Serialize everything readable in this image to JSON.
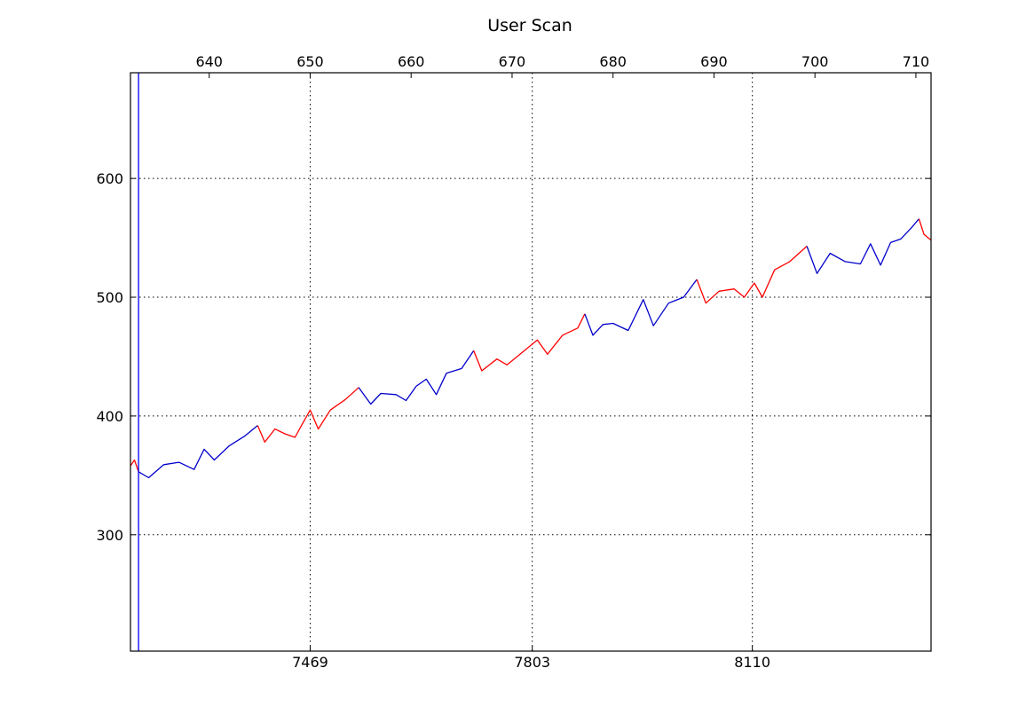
{
  "chart_data": {
    "type": "line",
    "title": "User Scan",
    "xlabel": "",
    "ylabel": "",
    "grid": true,
    "grid_style": "dotted",
    "top_axis": {
      "ticks": [
        640,
        650,
        660,
        670,
        680,
        690,
        700,
        710
      ],
      "range": [
        632.2,
        711.5
      ]
    },
    "bottom_axis": {
      "ticks": [
        "7469",
        "7803",
        "8110"
      ],
      "tick_at_top_value": [
        650,
        672,
        693.8
      ]
    },
    "y_axis": {
      "ticks": [
        300,
        400,
        500,
        600
      ],
      "range": [
        202,
        689
      ]
    },
    "series": [
      {
        "color": "#ff0000",
        "x": [
          632.2,
          632.6,
          633.0
        ],
        "y": [
          358,
          363,
          353
        ]
      },
      {
        "color": "#0000cc",
        "x": [
          633.0,
          634.0,
          635.5,
          637.0,
          638.5,
          639.5,
          640.5,
          642.0,
          643.5,
          644.8
        ],
        "y": [
          353,
          348,
          359,
          361,
          355,
          372,
          363,
          375,
          383,
          392
        ]
      },
      {
        "color": "#ff0000",
        "x": [
          644.8,
          645.5,
          646.5,
          647.5,
          648.5,
          649.2,
          650.0,
          650.8,
          652.0,
          653.5,
          654.8
        ],
        "y": [
          392,
          378,
          389,
          385,
          382,
          393,
          405,
          389,
          405,
          414,
          424
        ]
      },
      {
        "color": "#0000cc",
        "x": [
          654.8,
          656.0,
          657.0,
          658.5,
          659.5,
          660.5,
          661.5,
          662.5,
          663.5,
          665.0,
          666.2
        ],
        "y": [
          424,
          410,
          419,
          418,
          413,
          425,
          431,
          418,
          436,
          440,
          455
        ]
      },
      {
        "color": "#ff0000",
        "x": [
          666.2,
          667.0,
          668.5,
          669.5,
          670.5,
          671.5,
          672.5,
          673.5,
          675.0,
          676.5,
          677.2
        ],
        "y": [
          455,
          438,
          448,
          443,
          450,
          457,
          464,
          452,
          468,
          474,
          486
        ]
      },
      {
        "color": "#0000cc",
        "x": [
          677.2,
          678.0,
          679.0,
          680.0,
          681.5,
          683.0,
          684.0,
          685.5,
          687.0,
          688.3
        ],
        "y": [
          486,
          468,
          477,
          478,
          472,
          498,
          476,
          495,
          500,
          515
        ]
      },
      {
        "color": "#ff0000",
        "x": [
          688.3,
          689.2,
          690.5,
          692.0,
          693.0,
          694.0,
          694.8,
          696.0,
          697.5,
          699.2
        ],
        "y": [
          515,
          495,
          505,
          507,
          500,
          512,
          500,
          523,
          530,
          543
        ]
      },
      {
        "color": "#0000cc",
        "x": [
          699.2,
          700.2,
          701.5,
          703.0,
          704.5,
          705.5,
          706.5,
          707.5,
          708.5,
          709.5,
          710.3
        ],
        "y": [
          543,
          520,
          537,
          530,
          528,
          545,
          527,
          546,
          549,
          558,
          566
        ]
      },
      {
        "color": "#ff0000",
        "x": [
          710.3,
          710.8,
          711.5
        ],
        "y": [
          566,
          553,
          548
        ]
      }
    ],
    "marker_line": {
      "color": "#0000ff",
      "x": 633.0
    }
  }
}
